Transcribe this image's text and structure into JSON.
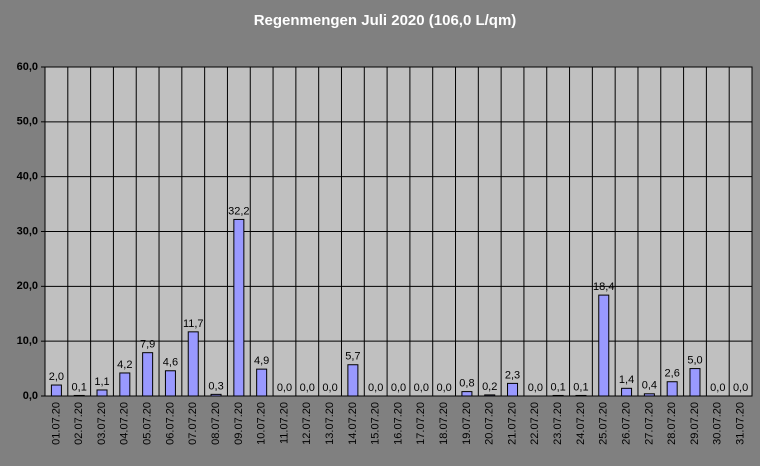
{
  "chart_data": {
    "type": "bar",
    "title": "Regenmengen Juli 2020 (106,0 L/qm)",
    "categories": [
      "01.07.20",
      "02.07.20",
      "03.07.20",
      "04.07.20",
      "05.07.20",
      "06.07.20",
      "07.07.20",
      "08.07.20",
      "09.07.20",
      "10.07.20",
      "11.07.20",
      "12.07.20",
      "13.07.20",
      "14.07.20",
      "15.07.20",
      "16.07.20",
      "17.07.20",
      "18.07.20",
      "19.07.20",
      "20.07.20",
      "21.07.20",
      "22.07.20",
      "23.07.20",
      "24.07.20",
      "25.07.20",
      "26.07.20",
      "27.07.20",
      "28.07.20",
      "29.07.20",
      "30.07.20",
      "31.07.20"
    ],
    "values": [
      2.0,
      0.1,
      1.1,
      4.2,
      7.9,
      4.6,
      11.7,
      0.3,
      32.2,
      4.9,
      0,
      0,
      0,
      5.7,
      0,
      0,
      0,
      0,
      0.8,
      0.2,
      2.3,
      0,
      0.1,
      0.1,
      18.4,
      1.4,
      0.4,
      2.6,
      5.0,
      0,
      0
    ],
    "value_labels": [
      "2,0",
      "0,1",
      "1,1",
      "4,2",
      "7,9",
      "4,6",
      "11,7",
      "0,3",
      "32,2",
      "4,9",
      "0,0",
      "0,0",
      "0,0",
      "5,7",
      "0,0",
      "0,0",
      "0,0",
      "0,0",
      "0,8",
      "0,2",
      "2,3",
      "0,0",
      "0,1",
      "0,1",
      "18,4",
      "1,4",
      "0,4",
      "2,6",
      "5,0",
      "0,0",
      "0,0"
    ],
    "color": "#9999ff",
    "ylim": [
      0,
      60
    ],
    "yticks": [
      {
        "value": 0,
        "label": "0,0"
      },
      {
        "value": 10,
        "label": "10,0"
      },
      {
        "value": 20,
        "label": "20,0"
      },
      {
        "value": 30,
        "label": "30,0"
      },
      {
        "value": 40,
        "label": "40,0"
      },
      {
        "value": 50,
        "label": "50,0"
      },
      {
        "value": 60,
        "label": "60,0"
      }
    ],
    "grid": true
  }
}
